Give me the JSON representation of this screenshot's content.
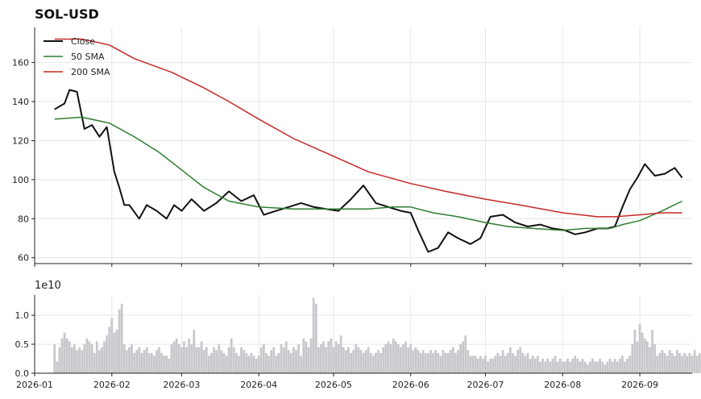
{
  "chart_data": [
    {
      "type": "line",
      "title": "SOL-USD",
      "x_range": [
        "2026-01-01",
        "2026-09-22"
      ],
      "ylim": [
        57,
        178
      ],
      "grid": true,
      "legend_position": "top-left",
      "x_ticks": [
        "2026-01",
        "2026-02",
        "2026-03",
        "2026-04",
        "2026-05",
        "2026-06",
        "2026-07",
        "2026-08",
        "2026-09"
      ],
      "y_ticks": [
        "60",
        "80",
        "100",
        "120",
        "140",
        "160"
      ],
      "series": [
        {
          "name": "Close",
          "color": "#111111",
          "x": [
            "2026-01-09",
            "2026-01-13",
            "2026-01-15",
            "2026-01-18",
            "2026-01-21",
            "2026-01-24",
            "2026-01-27",
            "2026-01-30",
            "2026-02-02",
            "2026-02-04",
            "2026-02-06",
            "2026-02-08",
            "2026-02-12",
            "2026-02-15",
            "2026-02-19",
            "2026-02-23",
            "2026-02-26",
            "2026-03-01",
            "2026-03-05",
            "2026-03-10",
            "2026-03-15",
            "2026-03-20",
            "2026-03-25",
            "2026-03-30",
            "2026-04-03",
            "2026-04-08",
            "2026-04-13",
            "2026-04-18",
            "2026-04-23",
            "2026-04-28",
            "2026-05-03",
            "2026-05-08",
            "2026-05-13",
            "2026-05-18",
            "2026-05-23",
            "2026-05-28",
            "2026-06-01",
            "2026-06-04",
            "2026-06-08",
            "2026-06-12",
            "2026-06-16",
            "2026-06-20",
            "2026-06-25",
            "2026-06-29",
            "2026-07-03",
            "2026-07-08",
            "2026-07-13",
            "2026-07-18",
            "2026-07-23",
            "2026-07-28",
            "2026-08-02",
            "2026-08-06",
            "2026-08-10",
            "2026-08-15",
            "2026-08-19",
            "2026-08-22",
            "2026-08-25",
            "2026-08-28",
            "2026-08-31",
            "2026-09-03",
            "2026-09-07",
            "2026-09-11",
            "2026-09-15",
            "2026-09-18"
          ],
          "y": [
            136,
            139,
            146,
            145,
            126,
            128,
            122,
            127,
            104,
            96,
            87,
            87,
            80,
            87,
            84,
            80,
            87,
            84,
            90,
            84,
            88,
            94,
            89,
            92,
            82,
            84,
            86,
            88,
            86,
            85,
            84,
            90,
            97,
            88,
            86,
            84,
            83,
            74,
            63,
            65,
            73,
            70,
            67,
            70,
            81,
            82,
            78,
            76,
            77,
            75,
            74,
            72,
            73,
            75,
            75,
            76,
            86,
            95,
            101,
            108,
            102,
            103,
            106,
            101
          ]
        },
        {
          "name": "50 SMA",
          "color": "#2e7d32",
          "x": [
            "2026-01-09",
            "2026-01-20",
            "2026-01-31",
            "2026-02-10",
            "2026-02-20",
            "2026-03-02",
            "2026-03-10",
            "2026-03-20",
            "2026-04-01",
            "2026-04-15",
            "2026-05-01",
            "2026-05-15",
            "2026-05-25",
            "2026-06-01",
            "2026-06-10",
            "2026-06-20",
            "2026-07-01",
            "2026-07-10",
            "2026-07-20",
            "2026-08-01",
            "2026-08-10",
            "2026-08-20",
            "2026-08-25",
            "2026-09-01",
            "2026-09-10",
            "2026-09-18"
          ],
          "y": [
            131,
            132,
            129,
            122,
            114,
            104,
            96,
            89,
            86,
            85,
            85,
            85,
            86,
            86,
            83,
            81,
            78,
            76,
            75,
            74,
            75,
            75,
            77,
            79,
            84,
            89
          ]
        },
        {
          "name": "200 SMA",
          "color": "#c62828",
          "x": [
            "2026-01-09",
            "2026-01-20",
            "2026-01-31",
            "2026-02-10",
            "2026-02-25",
            "2026-03-10",
            "2026-03-20",
            "2026-04-01",
            "2026-04-15",
            "2026-05-01",
            "2026-05-15",
            "2026-06-01",
            "2026-06-15",
            "2026-07-01",
            "2026-07-15",
            "2026-08-01",
            "2026-08-15",
            "2026-08-22",
            "2026-09-01",
            "2026-09-10",
            "2026-09-18"
          ],
          "y": [
            172,
            172,
            169,
            162,
            155,
            147,
            140,
            131,
            121,
            112,
            104,
            98,
            94,
            90,
            87,
            83,
            81,
            81,
            82,
            83,
            83
          ]
        }
      ]
    },
    {
      "type": "bar",
      "exponent_label": "1e10",
      "ylim": [
        0,
        1.35
      ],
      "y_ticks": [
        "0.0",
        "0.5",
        "1.0"
      ],
      "x_ticks": [
        "2026-01",
        "2026-02",
        "2026-03",
        "2026-04",
        "2026-05",
        "2026-06",
        "2026-07",
        "2026-08",
        "2026-09"
      ],
      "grid": true,
      "color": "#c8c8cc",
      "x_start": "2026-01-09",
      "x_step_days": 1,
      "values": [
        0.5,
        0.2,
        0.45,
        0.6,
        0.7,
        0.6,
        0.55,
        0.45,
        0.5,
        0.4,
        0.45,
        0.4,
        0.5,
        0.6,
        0.55,
        0.5,
        0.35,
        0.55,
        0.4,
        0.45,
        0.55,
        0.65,
        0.8,
        0.95,
        0.7,
        0.75,
        1.1,
        1.2,
        0.5,
        0.4,
        0.45,
        0.5,
        0.35,
        0.4,
        0.45,
        0.35,
        0.4,
        0.45,
        0.35,
        0.35,
        0.3,
        0.4,
        0.45,
        0.35,
        0.3,
        0.3,
        0.25,
        0.5,
        0.55,
        0.6,
        0.5,
        0.45,
        0.55,
        0.45,
        0.6,
        0.5,
        0.75,
        0.45,
        0.45,
        0.55,
        0.4,
        0.45,
        0.3,
        0.35,
        0.45,
        0.4,
        0.5,
        0.4,
        0.35,
        0.3,
        0.45,
        0.6,
        0.45,
        0.35,
        0.3,
        0.45,
        0.4,
        0.35,
        0.3,
        0.35,
        0.3,
        0.25,
        0.3,
        0.45,
        0.5,
        0.35,
        0.3,
        0.4,
        0.45,
        0.3,
        0.35,
        0.5,
        0.45,
        0.55,
        0.4,
        0.35,
        0.45,
        0.4,
        0.5,
        0.3,
        0.6,
        0.55,
        0.45,
        0.6,
        1.3,
        1.2,
        0.45,
        0.5,
        0.55,
        0.45,
        0.55,
        0.6,
        0.45,
        0.55,
        0.5,
        0.65,
        0.45,
        0.4,
        0.45,
        0.35,
        0.4,
        0.5,
        0.45,
        0.4,
        0.35,
        0.4,
        0.45,
        0.35,
        0.3,
        0.35,
        0.4,
        0.35,
        0.45,
        0.5,
        0.55,
        0.5,
        0.6,
        0.55,
        0.5,
        0.45,
        0.5,
        0.55,
        0.45,
        0.5,
        0.4,
        0.45,
        0.4,
        0.35,
        0.4,
        0.35,
        0.35,
        0.4,
        0.35,
        0.4,
        0.35,
        0.3,
        0.4,
        0.35,
        0.35,
        0.4,
        0.45,
        0.35,
        0.4,
        0.5,
        0.55,
        0.65,
        0.4,
        0.3,
        0.3,
        0.3,
        0.25,
        0.3,
        0.25,
        0.3,
        0.2,
        0.25,
        0.25,
        0.3,
        0.35,
        0.3,
        0.4,
        0.3,
        0.35,
        0.45,
        0.35,
        0.3,
        0.4,
        0.45,
        0.35,
        0.3,
        0.35,
        0.25,
        0.3,
        0.25,
        0.3,
        0.2,
        0.25,
        0.2,
        0.25,
        0.2,
        0.25,
        0.3,
        0.2,
        0.25,
        0.2,
        0.2,
        0.25,
        0.2,
        0.25,
        0.3,
        0.25,
        0.2,
        0.25,
        0.2,
        0.15,
        0.2,
        0.25,
        0.2,
        0.2,
        0.25,
        0.2,
        0.15,
        0.2,
        0.25,
        0.2,
        0.25,
        0.2,
        0.25,
        0.3,
        0.2,
        0.25,
        0.3,
        0.5,
        0.75,
        0.55,
        0.85,
        0.7,
        0.6,
        0.55,
        0.45,
        0.75,
        0.5,
        0.3,
        0.35,
        0.4,
        0.35,
        0.3,
        0.4,
        0.35,
        0.3,
        0.4,
        0.35,
        0.3,
        0.35,
        0.3,
        0.35,
        0.3,
        0.4,
        0.3,
        0.35,
        0.4,
        0.35
      ]
    }
  ]
}
